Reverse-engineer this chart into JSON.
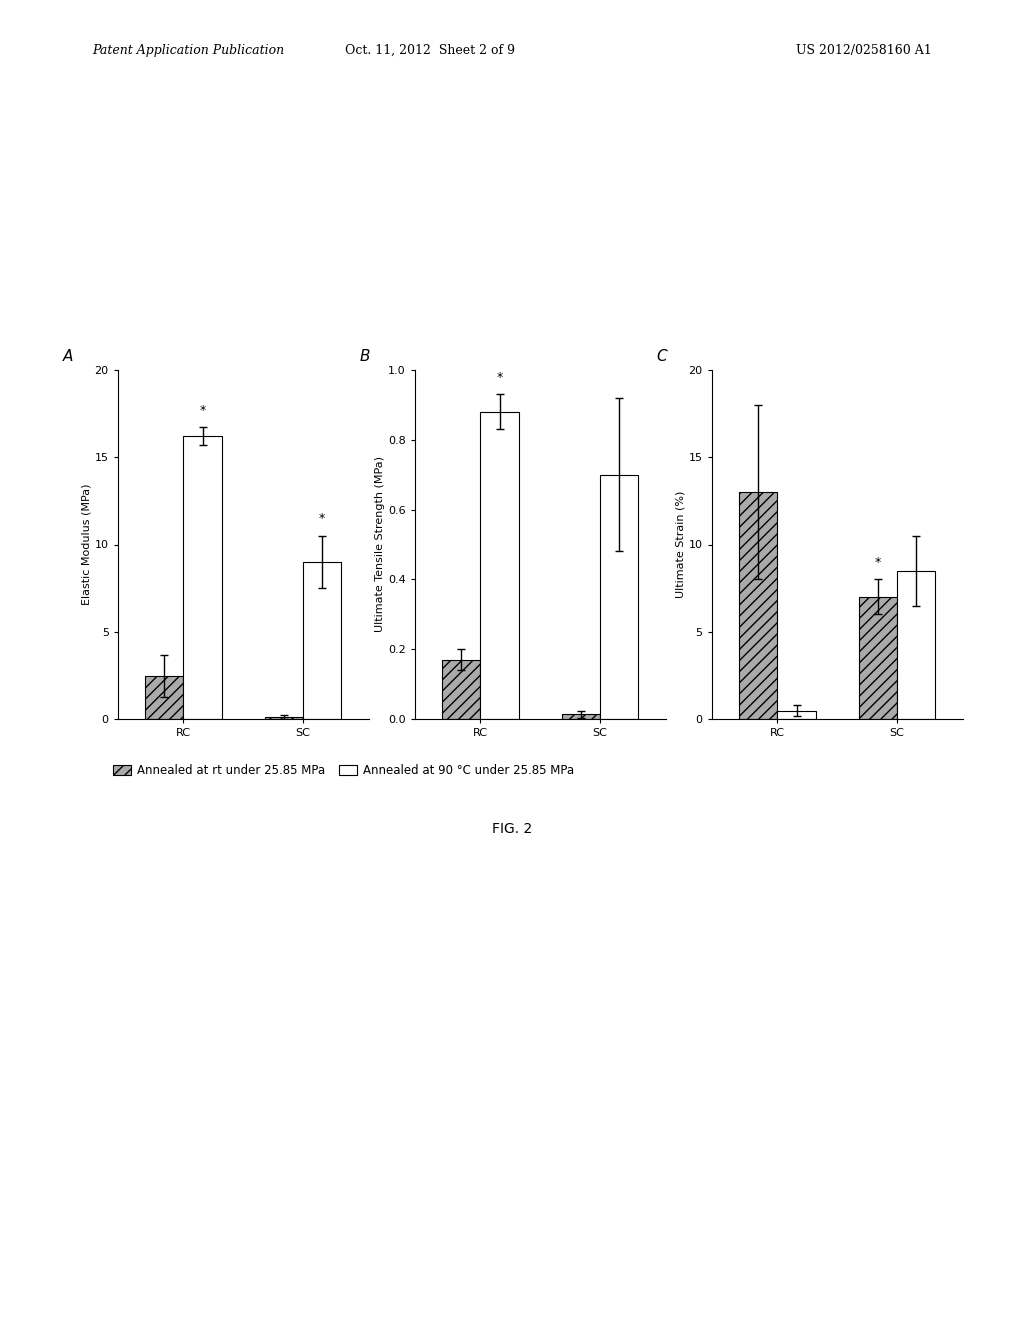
{
  "panel_A": {
    "title": "A",
    "ylabel": "Elastic Modulus (MPa)",
    "ylim": [
      0,
      20
    ],
    "yticks": [
      0,
      5,
      10,
      15,
      20
    ],
    "categories": [
      "RC",
      "SC"
    ],
    "gray_values": [
      2.5,
      0.15
    ],
    "gray_errors": [
      1.2,
      0.1
    ],
    "white_values": [
      16.2,
      9.0
    ],
    "white_errors": [
      0.5,
      1.5
    ],
    "white_star": [
      true,
      true
    ],
    "gray_star": [
      false,
      false
    ]
  },
  "panel_B": {
    "title": "B",
    "ylabel": "Ultimate Tensile Strength (MPa)",
    "ylim": [
      0.0,
      1.0
    ],
    "yticks": [
      0.0,
      0.2,
      0.4,
      0.6,
      0.8,
      1.0
    ],
    "categories": [
      "RC",
      "SC"
    ],
    "gray_values": [
      0.17,
      0.015
    ],
    "gray_errors": [
      0.03,
      0.01
    ],
    "white_values": [
      0.88,
      0.7
    ],
    "white_errors": [
      0.05,
      0.22
    ],
    "white_star": [
      true,
      false
    ],
    "gray_star": [
      false,
      false
    ]
  },
  "panel_C": {
    "title": "C",
    "ylabel": "Ultimate Strain (%)",
    "ylim": [
      0,
      20
    ],
    "yticks": [
      0,
      5,
      10,
      15,
      20
    ],
    "categories": [
      "RC",
      "SC"
    ],
    "gray_values": [
      13.0,
      7.0
    ],
    "gray_errors": [
      5.0,
      1.0
    ],
    "white_values": [
      0.5,
      8.5
    ],
    "white_errors": [
      0.3,
      2.0
    ],
    "white_star": [
      false,
      false
    ],
    "gray_star": [
      false,
      true
    ]
  },
  "legend_gray": "Annealed at rt under 25.85 MPa",
  "legend_white": "Annealed at 90 °C under 25.85 MPa",
  "fig_label": "FIG. 2",
  "header_left": "Patent Application Publication",
  "header_center": "Oct. 11, 2012  Sheet 2 of 9",
  "header_right": "US 2012/0258160 A1",
  "gray_color": "#aaaaaa",
  "gray_hatch": "///",
  "white_color": "#ffffff",
  "bar_edge_color": "#000000",
  "bar_width": 0.32,
  "background_color": "#ffffff"
}
